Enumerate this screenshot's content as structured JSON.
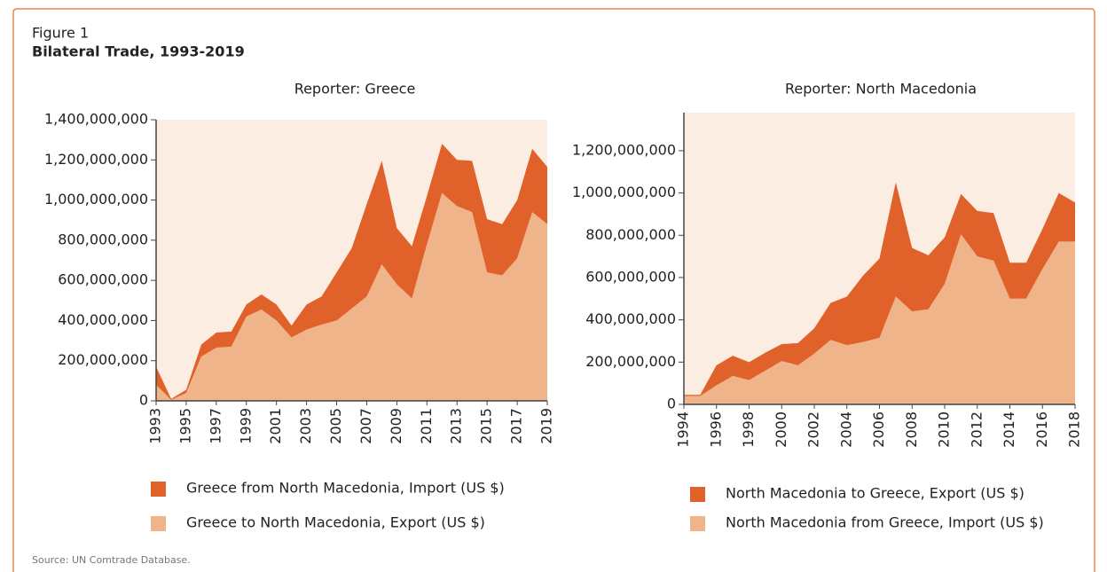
{
  "figure_label": "Figure 1",
  "title": "Bilateral Trade, 1993-2019",
  "source": "Source: UN Comtrade Database.",
  "chart_data": [
    {
      "type": "area",
      "title": "Reporter: Greece",
      "x": [
        1993,
        1994,
        1995,
        1996,
        1997,
        1998,
        1999,
        2000,
        2001,
        2002,
        2003,
        2004,
        2005,
        2006,
        2007,
        2008,
        2009,
        2010,
        2011,
        2012,
        2013,
        2014,
        2015,
        2016,
        2017,
        2018,
        2019
      ],
      "xlim": [
        1993,
        2019
      ],
      "xticks": [
        1993,
        1995,
        1997,
        1999,
        2001,
        2003,
        2005,
        2007,
        2009,
        2011,
        2013,
        2015,
        2017,
        2019
      ],
      "ylim": [
        0,
        1400000000
      ],
      "yticks": [
        0,
        {
          "value": 200000000,
          "label": "200,000,000"
        },
        {
          "value": 400000000,
          "label": "400,000,000"
        },
        {
          "value": 600000000,
          "label": "600,000,000"
        },
        {
          "value": 800000000,
          "label": "800,000,000"
        },
        {
          "value": 1000000000,
          "label": "1,000,000,000"
        },
        {
          "value": 1200000000,
          "label": "1,200,000,000"
        },
        {
          "value": 1400000000,
          "label": "1,400,000,000"
        }
      ],
      "stacked": true,
      "series": [
        {
          "name": "Greece from North Macedonia, Import (US $)",
          "color": "#e0622a",
          "values": [
            90000000,
            5000000,
            15000000,
            60000000,
            75000000,
            75000000,
            60000000,
            75000000,
            80000000,
            60000000,
            125000000,
            140000000,
            240000000,
            300000000,
            460000000,
            515000000,
            280000000,
            260000000,
            240000000,
            245000000,
            230000000,
            255000000,
            265000000,
            255000000,
            290000000,
            315000000,
            285000000
          ]
        },
        {
          "name": "Greece to North Macedonia, Export (US $)",
          "color": "#f0b48a",
          "values": [
            80000000,
            5000000,
            40000000,
            220000000,
            265000000,
            270000000,
            420000000,
            455000000,
            400000000,
            315000000,
            355000000,
            380000000,
            400000000,
            460000000,
            520000000,
            680000000,
            580000000,
            510000000,
            780000000,
            1035000000,
            970000000,
            940000000,
            640000000,
            625000000,
            710000000,
            940000000,
            880000000
          ]
        }
      ]
    },
    {
      "type": "area",
      "title": "Reporter: North Macedonia",
      "x": [
        1994,
        1995,
        1996,
        1997,
        1998,
        1999,
        2000,
        2001,
        2002,
        2003,
        2004,
        2005,
        2006,
        2007,
        2008,
        2009,
        2010,
        2011,
        2012,
        2013,
        2014,
        2015,
        2016,
        2017,
        2018
      ],
      "xlim": [
        1994,
        2018
      ],
      "xticks": [
        1994,
        1996,
        1998,
        2000,
        2002,
        2004,
        2006,
        2008,
        2010,
        2012,
        2014,
        2016,
        2018
      ],
      "ylim": [
        0,
        1380000000
      ],
      "yticks": [
        0,
        {
          "value": 200000000,
          "label": "200,000,000"
        },
        {
          "value": 400000000,
          "label": "400,000,000"
        },
        {
          "value": 600000000,
          "label": "600,000,000"
        },
        {
          "value": 800000000,
          "label": "800,000,000"
        },
        {
          "value": 1000000000,
          "label": "1,000,000,000"
        },
        {
          "value": 1200000000,
          "label": "1,200,000,000"
        }
      ],
      "stacked": true,
      "series": [
        {
          "name": "North Macedonia to Greece, Export (US $)",
          "color": "#e0622a",
          "values": [
            5000000,
            5000000,
            95000000,
            95000000,
            85000000,
            85000000,
            80000000,
            105000000,
            120000000,
            175000000,
            230000000,
            315000000,
            375000000,
            540000000,
            300000000,
            255000000,
            220000000,
            190000000,
            215000000,
            225000000,
            170000000,
            170000000,
            190000000,
            230000000,
            185000000
          ]
        },
        {
          "name": "North Macedonia from Greece, Import (US $)",
          "color": "#f0b48a",
          "values": [
            40000000,
            40000000,
            90000000,
            135000000,
            115000000,
            160000000,
            205000000,
            185000000,
            240000000,
            305000000,
            280000000,
            295000000,
            315000000,
            510000000,
            440000000,
            450000000,
            570000000,
            805000000,
            700000000,
            680000000,
            500000000,
            500000000,
            640000000,
            770000000,
            770000000
          ]
        }
      ]
    }
  ]
}
